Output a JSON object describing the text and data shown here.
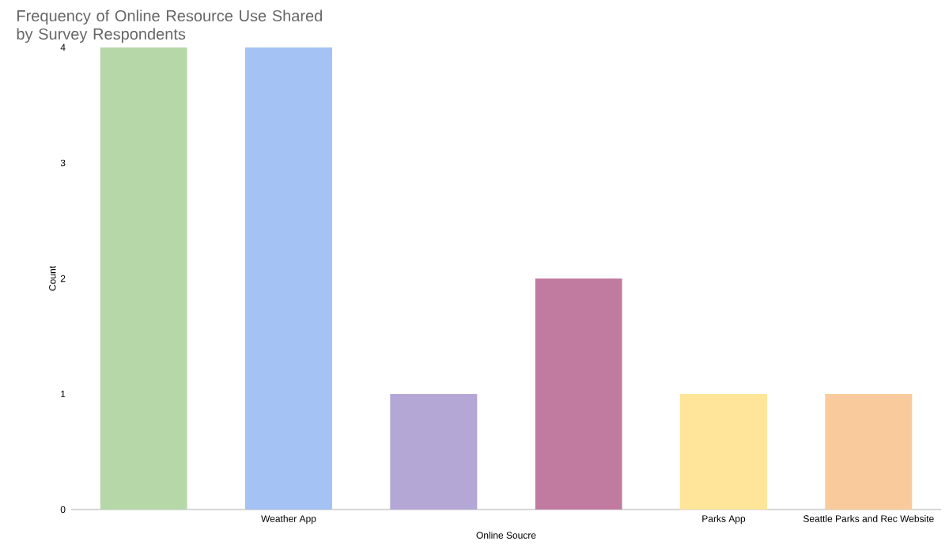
{
  "chart_data": {
    "type": "bar",
    "title": "Frequency of Online Resource Use Shared by Survey Respondents",
    "xlabel": "Online Soucre",
    "ylabel": "Count",
    "categories": [
      null,
      "Weather App",
      null,
      null,
      "Parks App",
      "Seattle Parks and Rec Website"
    ],
    "values": [
      4,
      4,
      1,
      2,
      1,
      1
    ],
    "colors": [
      "#b6d7a8",
      "#a4c2f4",
      "#b4a7d6",
      "#c27ba0",
      "#ffe599",
      "#f9cb9c"
    ],
    "ylim": [
      0,
      4
    ],
    "yticks": [
      0,
      1,
      2,
      3,
      4
    ]
  }
}
